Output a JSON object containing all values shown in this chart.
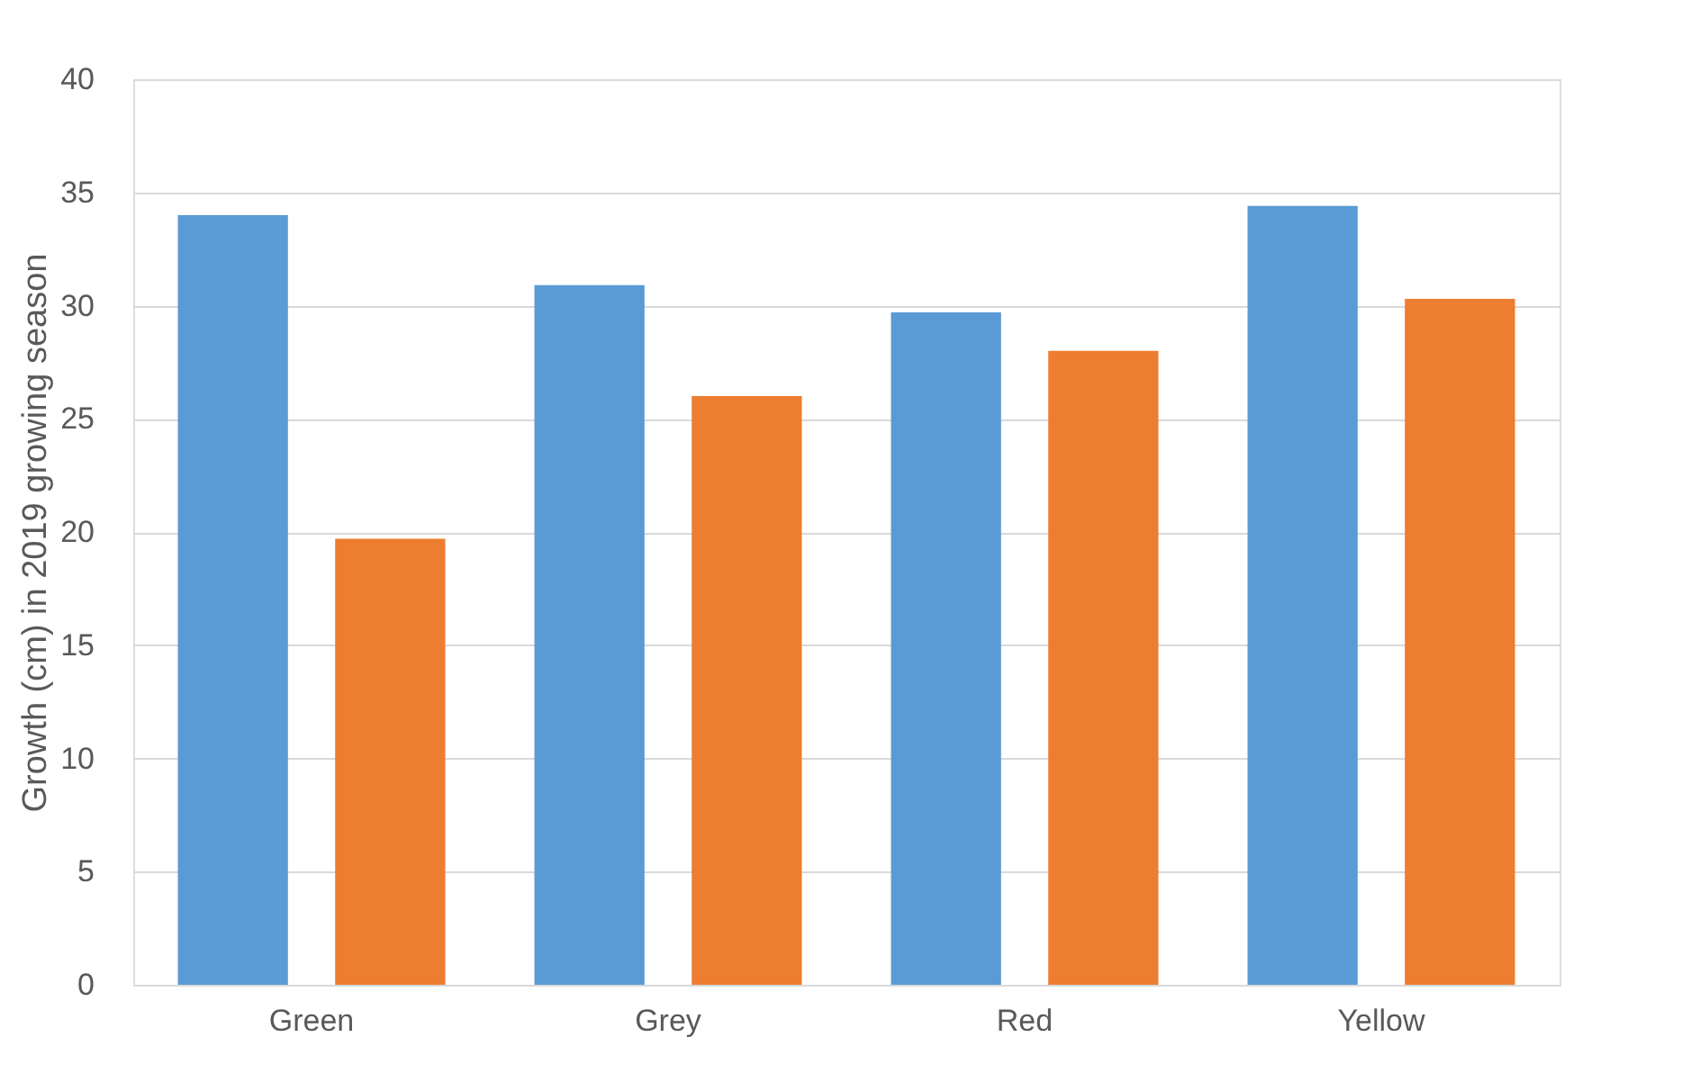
{
  "chart_data": {
    "type": "bar",
    "ylabel": "Growth (cm) in 2019 growing season",
    "categories": [
      "Green",
      "Grey",
      "Red",
      "Yellow"
    ],
    "series": [
      {
        "color": "#5b9bd5",
        "values": [
          34.0,
          30.9,
          29.7,
          34.4
        ]
      },
      {
        "color": "#ed7d31",
        "values": [
          19.7,
          26.0,
          28.0,
          30.3
        ]
      }
    ],
    "ylim": [
      0,
      40
    ],
    "yticks": [
      0,
      5,
      10,
      15,
      20,
      25,
      30,
      35,
      40
    ],
    "grid": "y",
    "legend": false
  }
}
